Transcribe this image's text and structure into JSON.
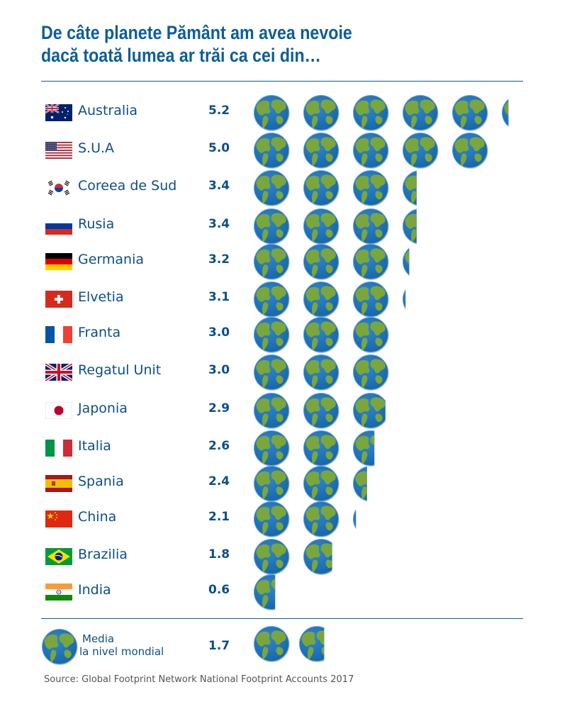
{
  "title": {
    "line1": "De câte planete Pământ am avea nevoie",
    "line2": "dacă toată lumea ar trăi ca cei din…"
  },
  "colors": {
    "text": "#0d4f86",
    "ocean": "#1565a8",
    "land": "#7aa63c",
    "rule": "#0d5d99"
  },
  "chart_data": {
    "type": "table",
    "unit_icon": "earth-globe-icon",
    "rows": [
      {
        "country": "Australia",
        "value": 5.2,
        "value_label": "5.2",
        "flag": "australia-flag"
      },
      {
        "country": "S.U.A",
        "value": 5.0,
        "value_label": "5.0",
        "flag": "usa-flag"
      },
      {
        "country": "Coreea de Sud",
        "value": 3.4,
        "value_label": "3.4",
        "flag": "south-korea-flag"
      },
      {
        "country": "Rusia",
        "value": 3.4,
        "value_label": "3.4",
        "flag": "russia-flag"
      },
      {
        "country": "Germania",
        "value": 3.2,
        "value_label": "3.2",
        "flag": "germany-flag"
      },
      {
        "country": "Elvetia",
        "value": 3.1,
        "value_label": "3.1",
        "flag": "switzerland-flag"
      },
      {
        "country": "Franta",
        "value": 3.0,
        "value_label": "3.0",
        "flag": "france-flag"
      },
      {
        "country": "Regatul Unit",
        "value": 3.0,
        "value_label": "3.0",
        "flag": "uk-flag"
      },
      {
        "country": "Japonia",
        "value": 2.9,
        "value_label": "2.9",
        "flag": "japan-flag"
      },
      {
        "country": "Italia",
        "value": 2.6,
        "value_label": "2.6",
        "flag": "italy-flag"
      },
      {
        "country": "Spania",
        "value": 2.4,
        "value_label": "2.4",
        "flag": "spain-flag"
      },
      {
        "country": "China",
        "value": 2.1,
        "value_label": "2.1",
        "flag": "china-flag"
      },
      {
        "country": "Brazilia",
        "value": 1.8,
        "value_label": "1.8",
        "flag": "brazil-flag"
      },
      {
        "country": "India",
        "value": 0.6,
        "value_label": "0.6",
        "flag": "india-flag"
      }
    ],
    "world_average": {
      "label_line1": "Media",
      "label_line2": "la nivel mondial",
      "value": 1.7,
      "value_label": "1.7"
    }
  },
  "source": "Source: Global Footprint Network National Footprint Accounts 2017"
}
